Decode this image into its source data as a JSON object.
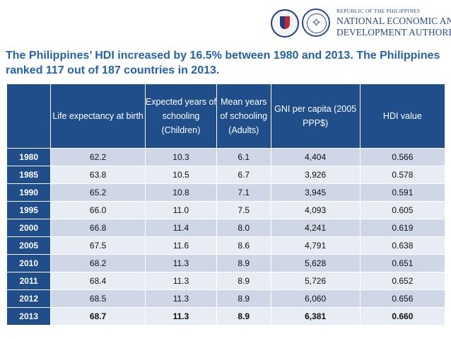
{
  "header": {
    "org_small": "REPUBLIC OF THE PHILIPPINES",
    "org_line1": "NATIONAL ECONOMIC AND",
    "org_line2": "DEVELOPMENT AUTHORITY"
  },
  "title": "The Philippines’ HDI increased by 16.5% between 1980 and 2013. The Philippines ranked 117 out of 187 countries in 2013.",
  "table": {
    "headers": [
      "",
      "Life expectancy at birth",
      "Expected years of schooling (Children)",
      "Mean years of schooling (Adults)",
      "GNI per capita (2005 PPP$)",
      "HDI value"
    ],
    "rows": [
      [
        "1980",
        "62.2",
        "10.3",
        "6.1",
        "4,404",
        "0.566"
      ],
      [
        "1985",
        "63.8",
        "10.5",
        "6.7",
        "3,926",
        "0.578"
      ],
      [
        "1990",
        "65.2",
        "10.8",
        "7.1",
        "3,945",
        "0.591"
      ],
      [
        "1995",
        "66.0",
        "11.0",
        "7.5",
        "4,093",
        "0.605"
      ],
      [
        "2000",
        "66.8",
        "11.4",
        "8.0",
        "4,241",
        "0.619"
      ],
      [
        "2005",
        "67.5",
        "11.6",
        "8.6",
        "4,791",
        "0.638"
      ],
      [
        "2010",
        "68.2",
        "11.3",
        "8.9",
        "5,628",
        "0.651"
      ],
      [
        "2011",
        "68.4",
        "11.3",
        "8.9",
        "5,726",
        "0.652"
      ],
      [
        "2012",
        "68.5",
        "11.3",
        "8.9",
        "6,060",
        "0.656"
      ],
      [
        "2013",
        "68.7",
        "11.3",
        "8.9",
        "6,381",
        "0.660"
      ]
    ]
  },
  "colors": {
    "title": "#2563a9",
    "header_bg": "#1f4e8a",
    "row_odd": "#cfd6e6",
    "row_even": "#e8ecf4"
  },
  "icons": [
    "philippines-seal-icon",
    "neda-seal-icon"
  ]
}
